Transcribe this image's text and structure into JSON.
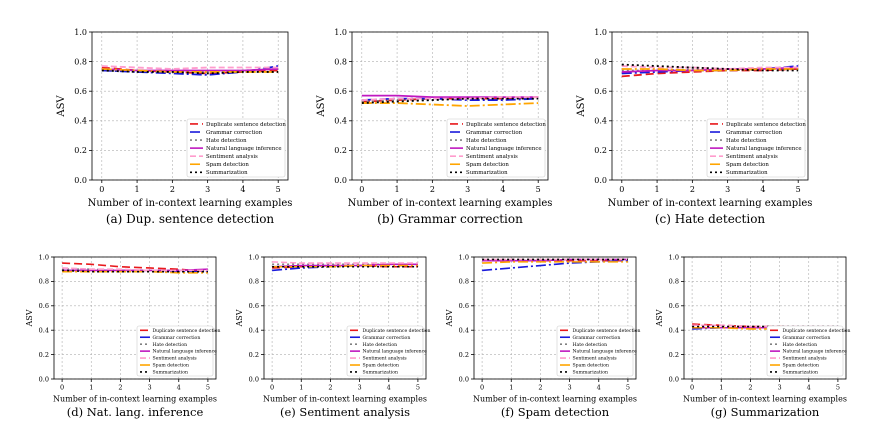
{
  "shared": {
    "type": "line",
    "x": [
      0,
      1,
      2,
      3,
      4,
      5
    ],
    "xlabel": "Number of in-context learning examples",
    "ylabel": "ASV",
    "ylim": [
      0.0,
      1.0
    ],
    "yticks": [
      "0.0",
      "0.2",
      "0.4",
      "0.6",
      "0.8",
      "1.0"
    ],
    "xticks": [
      "0",
      "1",
      "2",
      "3",
      "4",
      "5"
    ],
    "grid": true,
    "legend_position": "lower-right"
  },
  "series_styles": [
    {
      "name": "Duplicate sentence detection",
      "color": "#e8191c",
      "dash": "8,4"
    },
    {
      "name": "Grammar correction",
      "color": "#1a1adb",
      "dash": "10,3,2,3"
    },
    {
      "name": "Hate detection",
      "color": "#808080",
      "dash": "2,3"
    },
    {
      "name": "Natural language inference",
      "color": "#c018c0",
      "dash": ""
    },
    {
      "name": "Sentiment analysis",
      "color": "#ff9ccd",
      "dash": "6,3"
    },
    {
      "name": "Spam detection",
      "color": "#ffa500",
      "dash": "10,3,2,3"
    },
    {
      "name": "Summarization",
      "color": "#000000",
      "dash": "2,3"
    }
  ],
  "chart_data": [
    {
      "caption": "(a) Dup. sentence detection",
      "series": [
        {
          "name": "Duplicate sentence detection",
          "values": [
            0.76,
            0.74,
            0.73,
            0.72,
            0.73,
            0.74
          ]
        },
        {
          "name": "Grammar correction",
          "values": [
            0.74,
            0.73,
            0.72,
            0.71,
            0.73,
            0.77
          ]
        },
        {
          "name": "Hate detection",
          "values": [
            0.75,
            0.74,
            0.73,
            0.73,
            0.74,
            0.75
          ]
        },
        {
          "name": "Natural language inference",
          "values": [
            0.75,
            0.74,
            0.74,
            0.74,
            0.74,
            0.75
          ]
        },
        {
          "name": "Sentiment analysis",
          "values": [
            0.77,
            0.76,
            0.75,
            0.76,
            0.76,
            0.76
          ]
        },
        {
          "name": "Spam detection",
          "values": [
            0.75,
            0.74,
            0.73,
            0.73,
            0.73,
            0.73
          ]
        },
        {
          "name": "Summarization",
          "values": [
            0.74,
            0.73,
            0.73,
            0.72,
            0.73,
            0.73
          ]
        }
      ]
    },
    {
      "caption": "(b) Grammar correction",
      "series": [
        {
          "name": "Duplicate sentence detection",
          "values": [
            0.53,
            0.54,
            0.55,
            0.55,
            0.55,
            0.56
          ]
        },
        {
          "name": "Grammar correction",
          "values": [
            0.54,
            0.55,
            0.55,
            0.54,
            0.54,
            0.55
          ]
        },
        {
          "name": "Hate detection",
          "values": [
            0.53,
            0.54,
            0.54,
            0.55,
            0.55,
            0.55
          ]
        },
        {
          "name": "Natural language inference",
          "values": [
            0.57,
            0.57,
            0.56,
            0.56,
            0.56,
            0.56
          ]
        },
        {
          "name": "Sentiment analysis",
          "values": [
            0.54,
            0.55,
            0.55,
            0.55,
            0.56,
            0.56
          ]
        },
        {
          "name": "Spam detection",
          "values": [
            0.52,
            0.52,
            0.51,
            0.5,
            0.51,
            0.52
          ]
        },
        {
          "name": "Summarization",
          "values": [
            0.52,
            0.53,
            0.54,
            0.55,
            0.55,
            0.55
          ]
        }
      ]
    },
    {
      "caption": "(c) Hate detection",
      "series": [
        {
          "name": "Duplicate sentence detection",
          "values": [
            0.7,
            0.72,
            0.73,
            0.74,
            0.74,
            0.75
          ]
        },
        {
          "name": "Grammar correction",
          "values": [
            0.72,
            0.73,
            0.74,
            0.74,
            0.75,
            0.77
          ]
        },
        {
          "name": "Hate detection",
          "values": [
            0.74,
            0.74,
            0.75,
            0.75,
            0.75,
            0.75
          ]
        },
        {
          "name": "Natural language inference",
          "values": [
            0.73,
            0.74,
            0.74,
            0.75,
            0.75,
            0.76
          ]
        },
        {
          "name": "Sentiment analysis",
          "values": [
            0.77,
            0.76,
            0.76,
            0.75,
            0.76,
            0.76
          ]
        },
        {
          "name": "Spam detection",
          "values": [
            0.75,
            0.75,
            0.74,
            0.74,
            0.75,
            0.75
          ]
        },
        {
          "name": "Summarization",
          "values": [
            0.78,
            0.77,
            0.76,
            0.75,
            0.74,
            0.74
          ]
        }
      ]
    },
    {
      "caption": "(d) Nat. lang. inference",
      "series": [
        {
          "name": "Duplicate sentence detection",
          "values": [
            0.95,
            0.94,
            0.92,
            0.91,
            0.9,
            0.88
          ]
        },
        {
          "name": "Grammar correction",
          "values": [
            0.89,
            0.89,
            0.89,
            0.89,
            0.88,
            0.88
          ]
        },
        {
          "name": "Hate detection",
          "values": [
            0.9,
            0.9,
            0.89,
            0.89,
            0.89,
            0.89
          ]
        },
        {
          "name": "Natural language inference",
          "values": [
            0.89,
            0.89,
            0.89,
            0.89,
            0.89,
            0.9
          ]
        },
        {
          "name": "Sentiment analysis",
          "values": [
            0.91,
            0.9,
            0.9,
            0.89,
            0.89,
            0.89
          ]
        },
        {
          "name": "Spam detection",
          "values": [
            0.88,
            0.88,
            0.88,
            0.88,
            0.87,
            0.87
          ]
        },
        {
          "name": "Summarization",
          "values": [
            0.89,
            0.88,
            0.88,
            0.88,
            0.88,
            0.88
          ]
        }
      ]
    },
    {
      "caption": "(e) Sentiment analysis",
      "series": [
        {
          "name": "Duplicate sentence detection",
          "values": [
            0.91,
            0.92,
            0.93,
            0.93,
            0.92,
            0.92
          ]
        },
        {
          "name": "Grammar correction",
          "values": [
            0.89,
            0.91,
            0.92,
            0.93,
            0.93,
            0.93
          ]
        },
        {
          "name": "Hate detection",
          "values": [
            0.94,
            0.94,
            0.94,
            0.94,
            0.94,
            0.94
          ]
        },
        {
          "name": "Natural language inference",
          "values": [
            0.92,
            0.93,
            0.93,
            0.93,
            0.94,
            0.94
          ]
        },
        {
          "name": "Sentiment analysis",
          "values": [
            0.96,
            0.95,
            0.95,
            0.95,
            0.95,
            0.95
          ]
        },
        {
          "name": "Spam detection",
          "values": [
            0.92,
            0.92,
            0.92,
            0.93,
            0.93,
            0.93
          ]
        },
        {
          "name": "Summarization",
          "values": [
            0.92,
            0.92,
            0.92,
            0.92,
            0.92,
            0.92
          ]
        }
      ]
    },
    {
      "caption": "(f) Spam detection",
      "series": [
        {
          "name": "Duplicate sentence detection",
          "values": [
            0.97,
            0.97,
            0.97,
            0.97,
            0.97,
            0.97
          ]
        },
        {
          "name": "Grammar correction",
          "values": [
            0.89,
            0.91,
            0.93,
            0.95,
            0.96,
            0.97
          ]
        },
        {
          "name": "Hate detection",
          "values": [
            0.97,
            0.97,
            0.98,
            0.98,
            0.98,
            0.98
          ]
        },
        {
          "name": "Natural language inference",
          "values": [
            0.97,
            0.97,
            0.97,
            0.98,
            0.98,
            0.98
          ]
        },
        {
          "name": "Sentiment analysis",
          "values": [
            0.98,
            0.98,
            0.98,
            0.98,
            0.98,
            0.98
          ]
        },
        {
          "name": "Spam detection",
          "values": [
            0.95,
            0.96,
            0.96,
            0.96,
            0.96,
            0.96
          ]
        },
        {
          "name": "Summarization",
          "values": [
            0.98,
            0.98,
            0.98,
            0.98,
            0.98,
            0.98
          ]
        }
      ]
    },
    {
      "caption": "(g) Summarization",
      "series": [
        {
          "name": "Duplicate sentence detection",
          "values": [
            0.45,
            0.44,
            0.43,
            0.43,
            0.42,
            0.42
          ]
        },
        {
          "name": "Grammar correction",
          "values": [
            0.41,
            0.42,
            0.42,
            0.42,
            0.42,
            0.43
          ]
        },
        {
          "name": "Hate detection",
          "values": [
            0.43,
            0.43,
            0.43,
            0.43,
            0.43,
            0.43
          ]
        },
        {
          "name": "Natural language inference",
          "values": [
            0.42,
            0.42,
            0.42,
            0.42,
            0.42,
            0.42
          ]
        },
        {
          "name": "Sentiment analysis",
          "values": [
            0.44,
            0.44,
            0.43,
            0.43,
            0.43,
            0.43
          ]
        },
        {
          "name": "Spam detection",
          "values": [
            0.42,
            0.42,
            0.41,
            0.41,
            0.41,
            0.41
          ]
        },
        {
          "name": "Summarization",
          "values": [
            0.43,
            0.43,
            0.43,
            0.43,
            0.43,
            0.43
          ]
        }
      ]
    }
  ]
}
